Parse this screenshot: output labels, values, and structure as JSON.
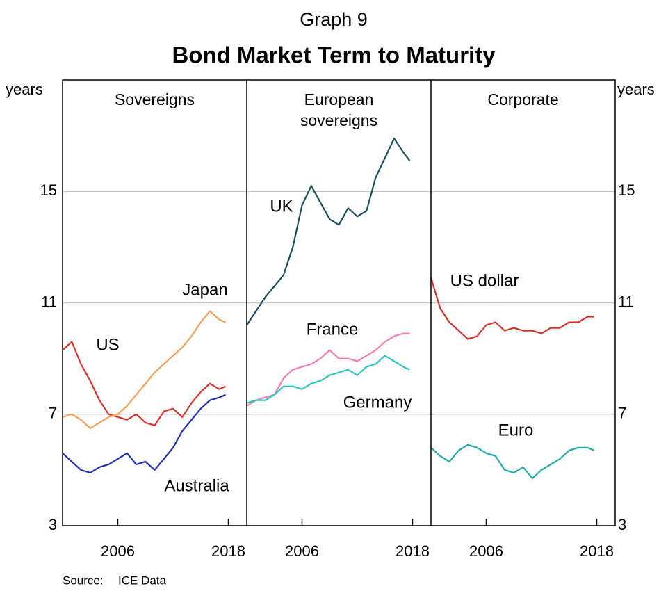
{
  "header": {
    "label": "Graph 9",
    "title": "Bond Market Term to Maturity"
  },
  "y_axis_label": "years",
  "source_label": "Source:",
  "source": "ICE Data",
  "chart_data": [
    {
      "type": "line",
      "title": "Sovereigns",
      "x": [
        2000,
        2001,
        2002,
        2003,
        2004,
        2005,
        2006,
        2007,
        2008,
        2009,
        2010,
        2011,
        2012,
        2013,
        2014,
        2015,
        2016,
        2017,
        2017.7
      ],
      "xlim": [
        2000,
        2020
      ],
      "xticks": [
        2006,
        2018
      ],
      "ylim": [
        3,
        19
      ],
      "yticks": [
        3,
        7,
        11,
        15
      ],
      "grid": true,
      "series": [
        {
          "name": "US",
          "color": "#d9322b",
          "values": [
            9.3,
            9.6,
            8.8,
            8.2,
            7.5,
            7.0,
            6.9,
            6.8,
            7.0,
            6.7,
            6.6,
            7.1,
            7.2,
            6.9,
            7.4,
            7.8,
            8.1,
            7.9,
            8.0
          ]
        },
        {
          "name": "Japan",
          "color": "#f4a05a",
          "values": [
            6.9,
            7.0,
            6.8,
            6.5,
            6.7,
            6.9,
            7.0,
            7.3,
            7.7,
            8.1,
            8.5,
            8.8,
            9.1,
            9.4,
            9.8,
            10.3,
            10.7,
            10.4,
            10.3
          ]
        },
        {
          "name": "Australia",
          "color": "#1f2fb5",
          "values": [
            5.6,
            5.3,
            5.0,
            4.9,
            5.1,
            5.2,
            5.4,
            5.6,
            5.2,
            5.3,
            5.0,
            5.4,
            5.8,
            6.4,
            6.8,
            7.2,
            7.5,
            7.6,
            7.7
          ]
        }
      ]
    },
    {
      "type": "line",
      "title": "European sovereigns",
      "x": [
        2000,
        2001,
        2002,
        2003,
        2004,
        2005,
        2006,
        2007,
        2008,
        2009,
        2010,
        2011,
        2012,
        2013,
        2014,
        2015,
        2016,
        2017,
        2017.7
      ],
      "xlim": [
        2000,
        2020
      ],
      "xticks": [
        2006,
        2018
      ],
      "ylim": [
        3,
        19
      ],
      "yticks": [
        3,
        7,
        11,
        15
      ],
      "grid": true,
      "series": [
        {
          "name": "UK",
          "color": "#1b4f5e",
          "values": [
            10.2,
            10.7,
            11.2,
            11.6,
            12.0,
            13.0,
            14.5,
            15.2,
            14.6,
            14.0,
            13.8,
            14.4,
            14.1,
            14.3,
            15.5,
            16.2,
            16.9,
            16.4,
            16.1
          ]
        },
        {
          "name": "France",
          "color": "#f47fb0",
          "values": [
            7.3,
            7.5,
            7.6,
            7.7,
            8.3,
            8.6,
            8.7,
            8.8,
            9.0,
            9.3,
            9.0,
            9.0,
            8.9,
            9.1,
            9.3,
            9.6,
            9.8,
            9.9,
            9.9
          ]
        },
        {
          "name": "Germany",
          "color": "#2ec4c4",
          "values": [
            7.4,
            7.5,
            7.5,
            7.7,
            8.0,
            8.0,
            7.9,
            8.1,
            8.2,
            8.4,
            8.5,
            8.6,
            8.4,
            8.7,
            8.8,
            9.1,
            8.9,
            8.7,
            8.6
          ]
        }
      ]
    },
    {
      "type": "line",
      "title": "Corporate",
      "x": [
        2000,
        2001,
        2002,
        2003,
        2004,
        2005,
        2006,
        2007,
        2008,
        2009,
        2010,
        2011,
        2012,
        2013,
        2014,
        2015,
        2016,
        2017,
        2017.7
      ],
      "xlim": [
        2000,
        2020
      ],
      "xticks": [
        2006,
        2018
      ],
      "ylim": [
        3,
        19
      ],
      "yticks": [
        3,
        7,
        11,
        15
      ],
      "grid": true,
      "series": [
        {
          "name": "US dollar",
          "color": "#d9322b",
          "values": [
            11.9,
            10.8,
            10.3,
            10.0,
            9.7,
            9.8,
            10.2,
            10.3,
            10.0,
            10.1,
            10.0,
            10.0,
            9.9,
            10.1,
            10.1,
            10.3,
            10.3,
            10.5,
            10.5
          ]
        },
        {
          "name": "Euro",
          "color": "#24aaa6",
          "values": [
            5.8,
            5.5,
            5.3,
            5.7,
            5.9,
            5.8,
            5.6,
            5.5,
            5.0,
            4.9,
            5.1,
            4.7,
            5.0,
            5.2,
            5.4,
            5.7,
            5.8,
            5.8,
            5.7
          ]
        }
      ]
    }
  ]
}
